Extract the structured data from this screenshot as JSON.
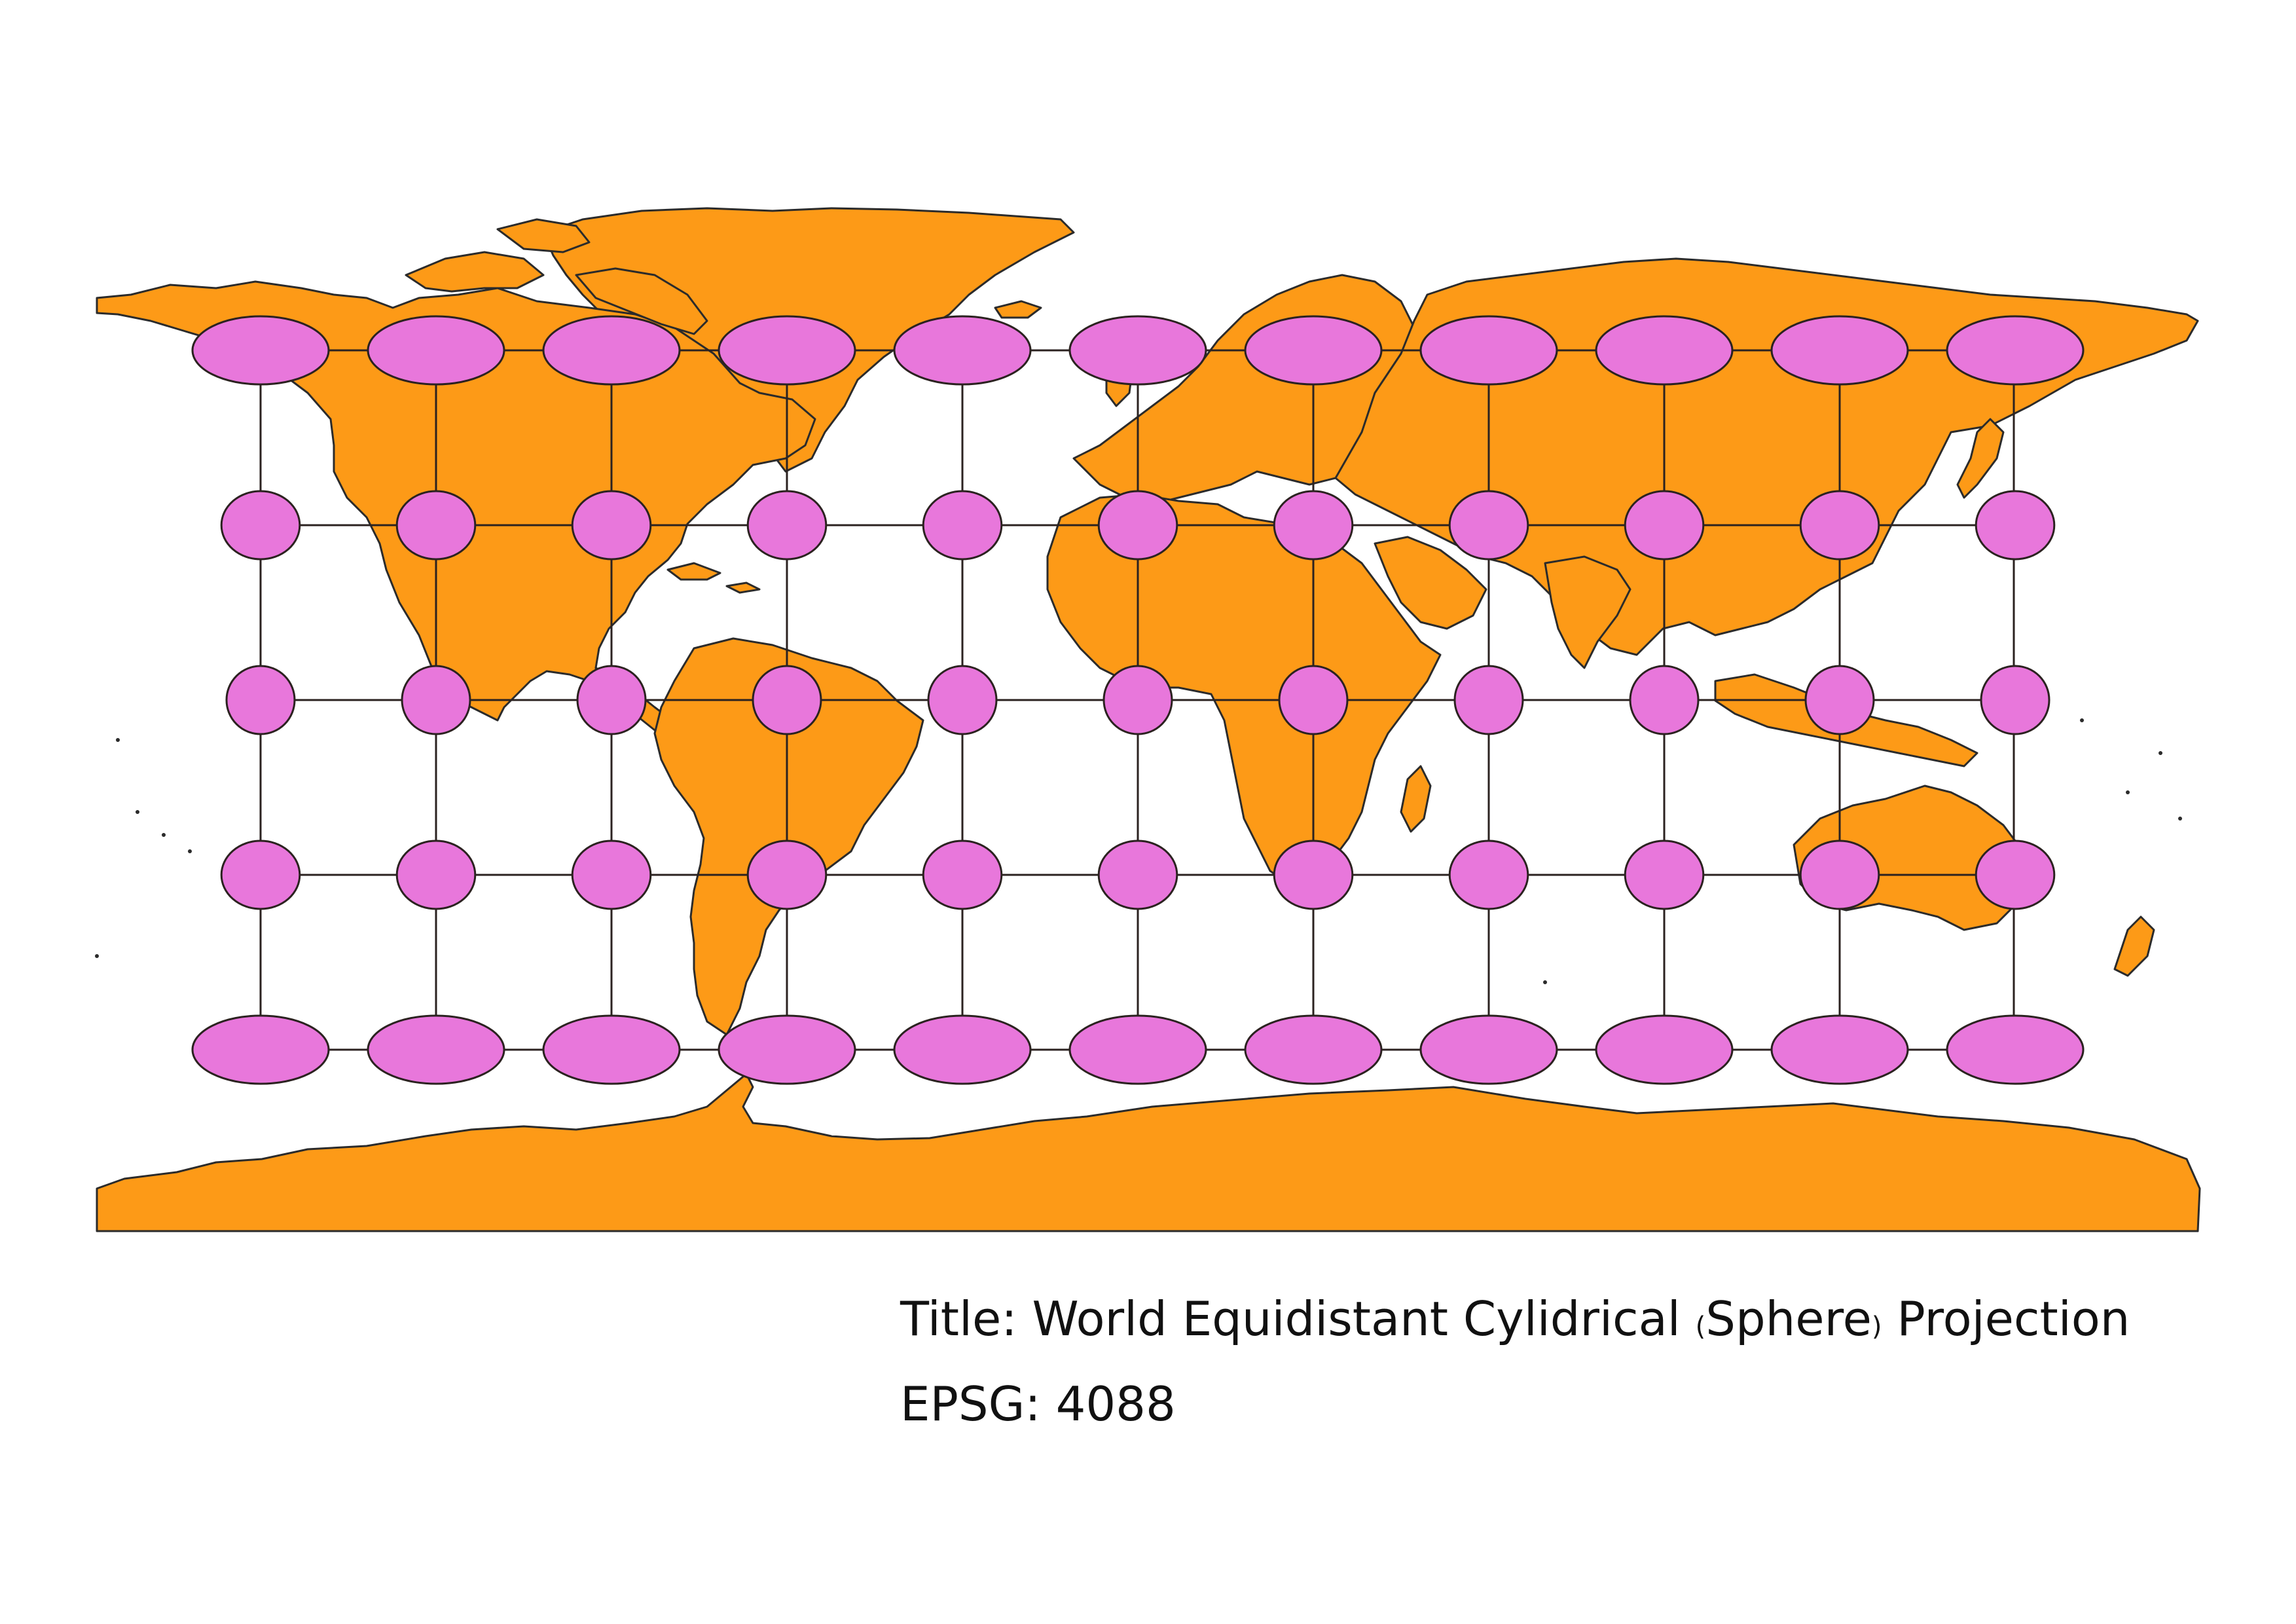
{
  "map": {
    "title_prefix": "Title",
    "title_text": "World Equidistant Cylidrical",
    "title_paren_word": "Sphere",
    "title_suffix": "Projection",
    "epsg_label": "EPSG",
    "epsg_code": "4088",
    "colors": {
      "land": "#FD9A17",
      "indicatrix": "#E877DB",
      "outline": "#2b2b2b",
      "background": "#ffffff"
    },
    "tissot": {
      "rows": 5,
      "columns": 11,
      "row_latitude_ratio": [
        2.0,
        1.15,
        1.0,
        1.15,
        2.0
      ]
    }
  }
}
